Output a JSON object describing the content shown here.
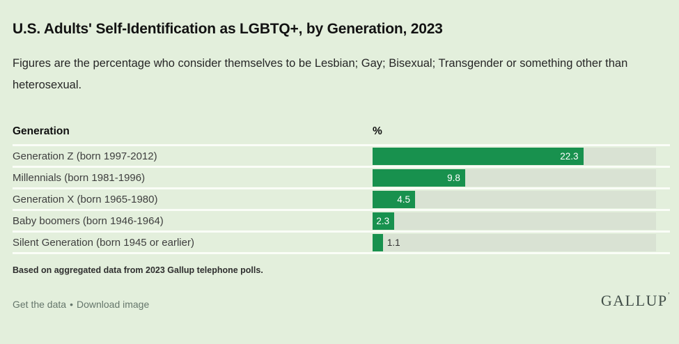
{
  "title": "U.S. Adults' Self-Identification as LGBTQ+, by Generation, 2023",
  "subtitle": "Figures are the percentage who consider themselves to be Lesbian; Gay; Bisexual; Transgender or something other than heterosexual.",
  "table": {
    "col1_header": "Generation",
    "col2_header": "%"
  },
  "chart_data": {
    "type": "bar",
    "orientation": "horizontal",
    "categories": [
      "Generation Z (born 1997-2012)",
      "Millennials (born 1981-1996)",
      "Generation X (born 1965-1980)",
      "Baby boomers (born 1946-1964)",
      "Silent Generation (born 1945 or earlier)"
    ],
    "values": [
      22.3,
      9.8,
      4.5,
      2.3,
      1.1
    ],
    "value_unit": "%",
    "xlim": [
      0,
      30
    ],
    "bar_color": "#18914e",
    "track_color": "#d9e2d3",
    "background_color": "#e3efdc",
    "value_label_inside_color": "#ffffff",
    "value_label_outside_color": "#2e2e2e",
    "grid": false,
    "legend": false
  },
  "footnote": "Based on aggregated data from 2023 Gallup telephone polls.",
  "links": {
    "get_data": "Get the data",
    "separator": "•",
    "download": "Download image"
  },
  "logo": {
    "text": "GALLUP",
    "mark": "’"
  }
}
